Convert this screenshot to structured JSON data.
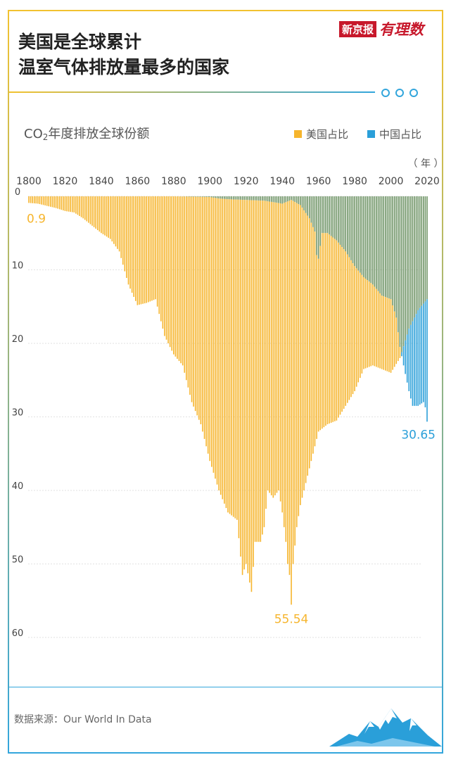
{
  "title_lines": [
    "美国是全球累计",
    "温室气体排放量最多的国家"
  ],
  "brand": {
    "name": "新京报",
    "script": "有理数"
  },
  "chart_title_prefix": "CO",
  "chart_title_sub": "2",
  "chart_title_suffix": "年度排放全球份额",
  "unit_label": "（ 年 ）",
  "source": "数据来源：Our World In Data",
  "colors": {
    "us": "#f6b52d",
    "china": "#2a9fd9",
    "overlap": "#6f9466",
    "accent_red": "#c7182b"
  },
  "chart_data": {
    "type": "bar",
    "orientation": "downward",
    "x_ticks": [
      "1800",
      "1820",
      "1840",
      "1860",
      "1880",
      "1900",
      "1920",
      "1940",
      "1960",
      "1980",
      "2000",
      "2020"
    ],
    "y_ticks": [
      "0",
      "10",
      "20",
      "30",
      "40",
      "50",
      "60"
    ],
    "xlim": [
      1800,
      2020
    ],
    "ylim": [
      0,
      60
    ],
    "series": [
      {
        "name": "美国占比",
        "color": "#f6b52d",
        "key": "us"
      },
      {
        "name": "中国占比",
        "color": "#2a9fd9",
        "key": "china"
      }
    ],
    "us": [
      [
        1800,
        0.9
      ],
      [
        1805,
        1.0
      ],
      [
        1810,
        1.3
      ],
      [
        1815,
        1.6
      ],
      [
        1820,
        2.0
      ],
      [
        1825,
        2.2
      ],
      [
        1830,
        3.0
      ],
      [
        1835,
        4.0
      ],
      [
        1840,
        5.0
      ],
      [
        1845,
        5.8
      ],
      [
        1850,
        7.5
      ],
      [
        1855,
        12.0
      ],
      [
        1860,
        14.8
      ],
      [
        1865,
        14.5
      ],
      [
        1870,
        14.0
      ],
      [
        1875,
        19.0
      ],
      [
        1880,
        21.5
      ],
      [
        1885,
        23.0
      ],
      [
        1890,
        28.0
      ],
      [
        1895,
        31.0
      ],
      [
        1900,
        36.0
      ],
      [
        1905,
        40.0
      ],
      [
        1910,
        43.0
      ],
      [
        1915,
        44.0
      ],
      [
        1918,
        51.5
      ],
      [
        1920,
        50.0
      ],
      [
        1923,
        53.8
      ],
      [
        1925,
        47.0
      ],
      [
        1928,
        47.0
      ],
      [
        1930,
        45.0
      ],
      [
        1932,
        40.0
      ],
      [
        1935,
        41.0
      ],
      [
        1938,
        40.0
      ],
      [
        1940,
        43.0
      ],
      [
        1942,
        47.0
      ],
      [
        1943,
        50.0
      ],
      [
        1944,
        51.5
      ],
      [
        1945,
        55.54
      ],
      [
        1946,
        50.0
      ],
      [
        1948,
        45.0
      ],
      [
        1950,
        42.0
      ],
      [
        1955,
        37.0
      ],
      [
        1960,
        32.0
      ],
      [
        1965,
        31.0
      ],
      [
        1970,
        30.5
      ],
      [
        1975,
        28.5
      ],
      [
        1980,
        26.5
      ],
      [
        1985,
        23.5
      ],
      [
        1990,
        23.0
      ],
      [
        1995,
        23.5
      ],
      [
        2000,
        24.0
      ],
      [
        2005,
        22.0
      ],
      [
        2010,
        18.0
      ],
      [
        2015,
        15.5
      ],
      [
        2020,
        14.0
      ]
    ],
    "china": [
      [
        1800,
        0
      ],
      [
        1880,
        0
      ],
      [
        1900,
        0.1
      ],
      [
        1905,
        0.3
      ],
      [
        1910,
        0.4
      ],
      [
        1920,
        0.5
      ],
      [
        1930,
        0.6
      ],
      [
        1940,
        1.0
      ],
      [
        1945,
        0.5
      ],
      [
        1950,
        1.2
      ],
      [
        1955,
        3.0
      ],
      [
        1958,
        4.8
      ],
      [
        1959,
        8.0
      ],
      [
        1960,
        8.5
      ],
      [
        1962,
        5.0
      ],
      [
        1965,
        5.0
      ],
      [
        1970,
        6.0
      ],
      [
        1975,
        7.5
      ],
      [
        1980,
        9.5
      ],
      [
        1985,
        11.0
      ],
      [
        1990,
        12.0
      ],
      [
        1995,
        13.5
      ],
      [
        2000,
        14.0
      ],
      [
        2003,
        16.5
      ],
      [
        2005,
        20.5
      ],
      [
        2007,
        23.0
      ],
      [
        2010,
        26.5
      ],
      [
        2012,
        28.5
      ],
      [
        2015,
        28.5
      ],
      [
        2018,
        28.0
      ],
      [
        2019,
        28.7
      ],
      [
        2020,
        30.65
      ]
    ],
    "annotations": [
      {
        "text": "0.9",
        "year": 1800,
        "value": 0.9,
        "series": "us"
      },
      {
        "text": "55.54",
        "year": 1945,
        "value": 55.54,
        "series": "us"
      },
      {
        "text": "30.65",
        "year": 2020,
        "value": 30.65,
        "series": "china"
      }
    ]
  }
}
